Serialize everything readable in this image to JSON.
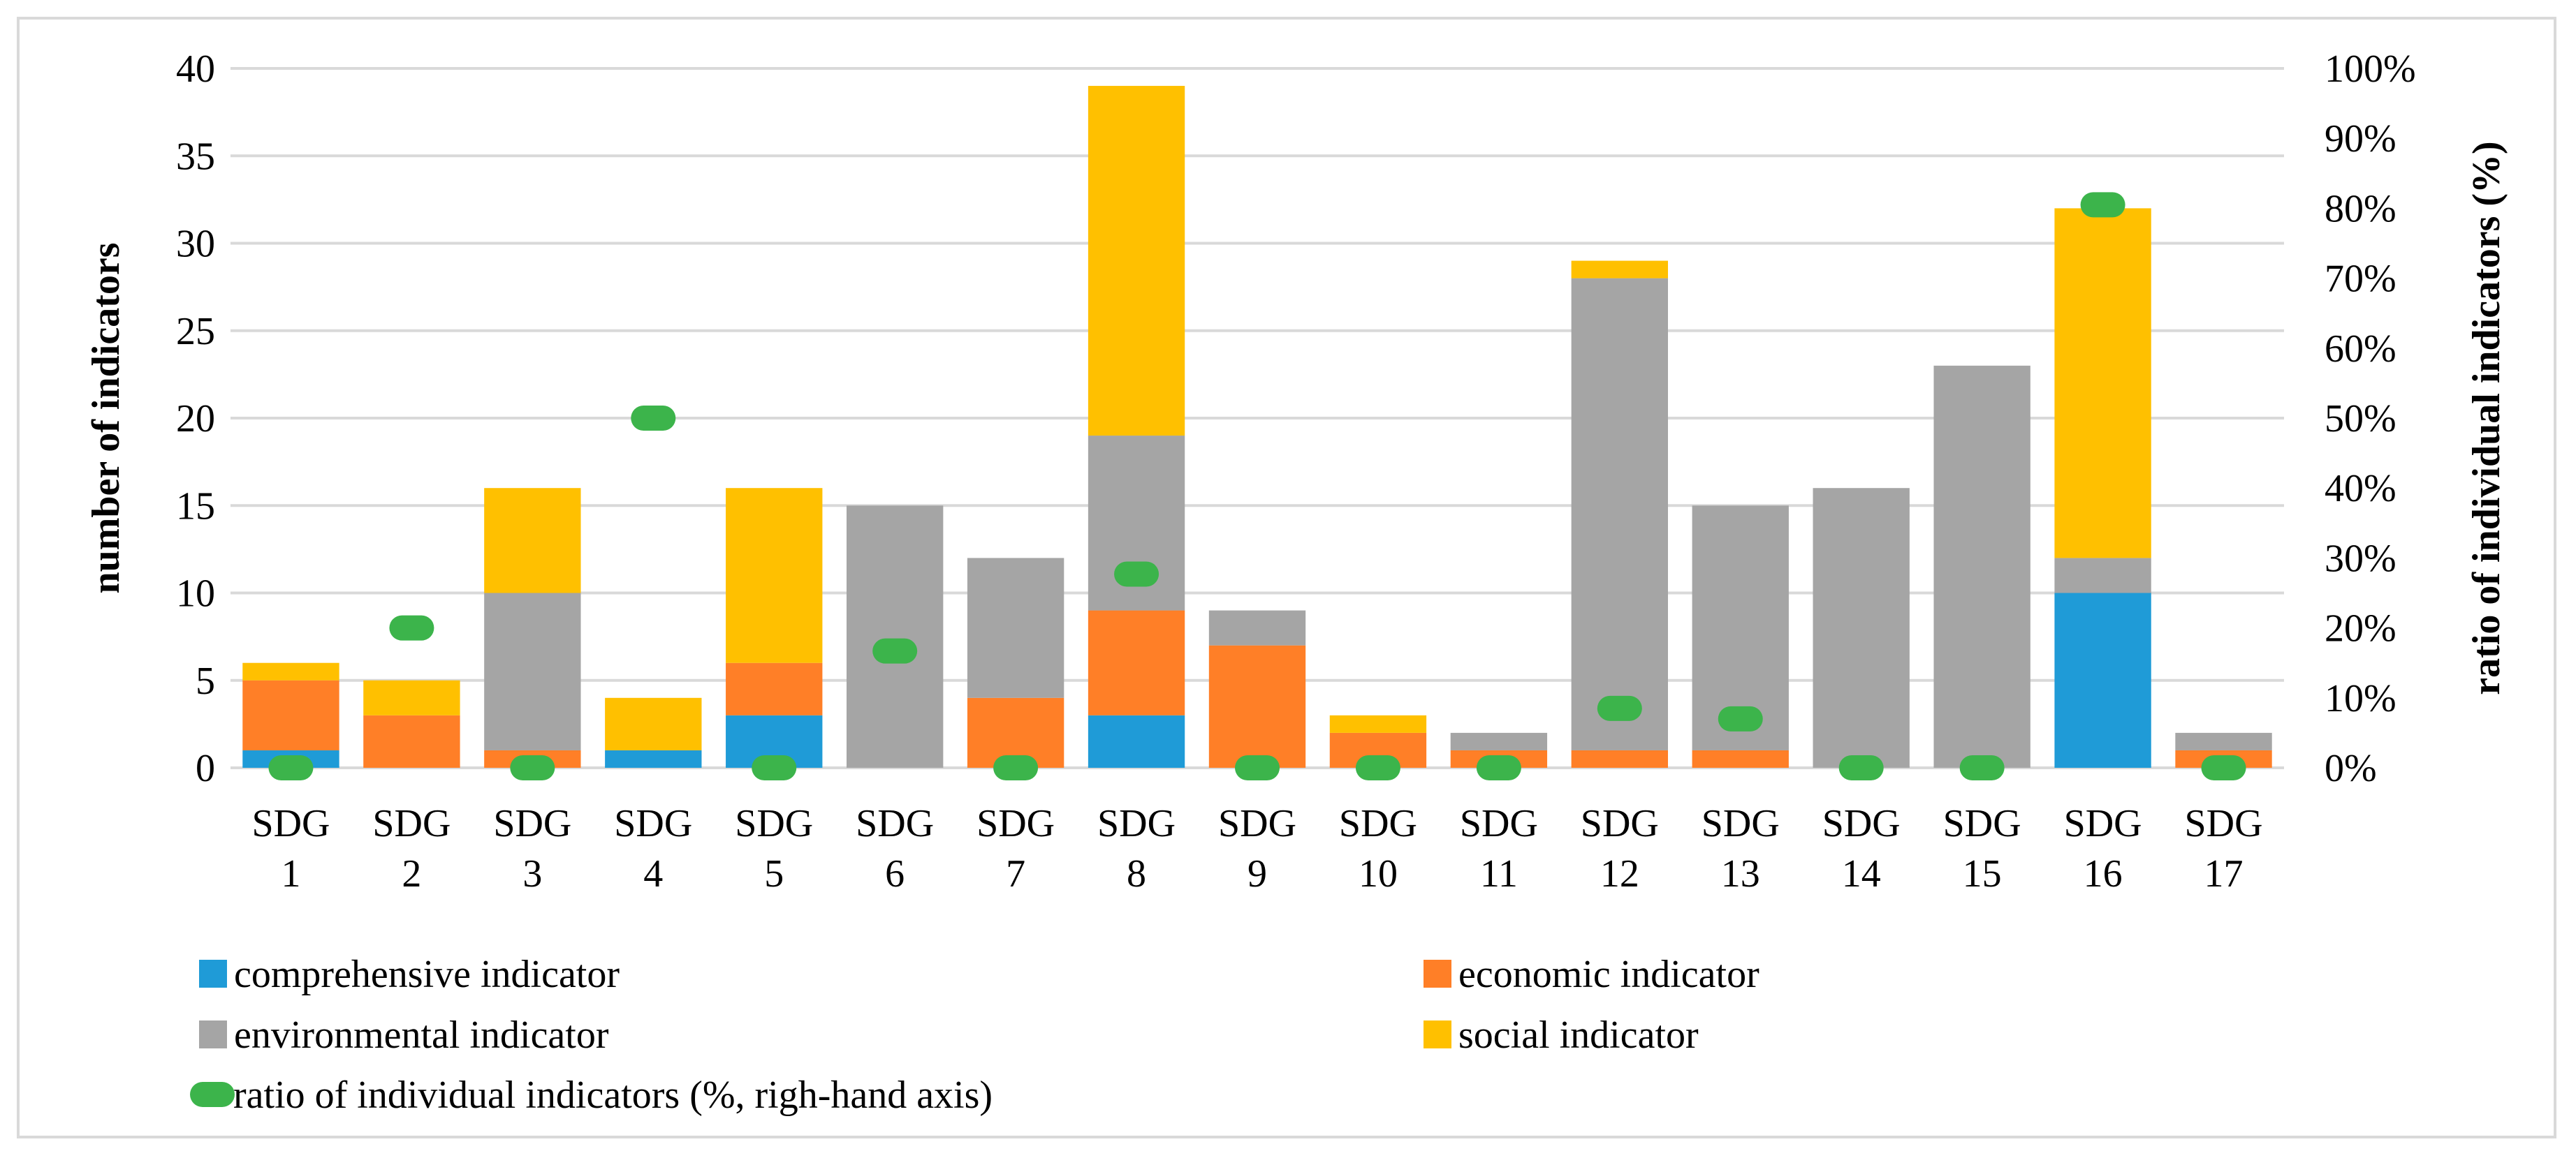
{
  "chart_data": {
    "type": "bar",
    "stacked": true,
    "categories": [
      [
        "SDG",
        "1"
      ],
      [
        "SDG",
        "2"
      ],
      [
        "SDG",
        "3"
      ],
      [
        "SDG",
        "4"
      ],
      [
        "SDG",
        "5"
      ],
      [
        "SDG",
        "6"
      ],
      [
        "SDG",
        "7"
      ],
      [
        "SDG",
        "8"
      ],
      [
        "SDG",
        "9"
      ],
      [
        "SDG",
        "10"
      ],
      [
        "SDG",
        "11"
      ],
      [
        "SDG",
        "12"
      ],
      [
        "SDG",
        "13"
      ],
      [
        "SDG",
        "14"
      ],
      [
        "SDG",
        "15"
      ],
      [
        "SDG",
        "16"
      ],
      [
        "SDG",
        "17"
      ]
    ],
    "series": [
      {
        "name": "comprehensive indicator",
        "color": "#1f9bd7",
        "values": [
          1,
          0,
          0,
          1,
          3,
          0,
          0,
          3,
          0,
          0,
          0,
          0,
          0,
          0,
          0,
          10,
          0
        ]
      },
      {
        "name": "economic indicator",
        "color": "#ff7f27",
        "values": [
          4,
          3,
          1,
          0,
          3,
          0,
          4,
          6,
          7,
          2,
          1,
          1,
          1,
          0,
          0,
          0,
          1
        ]
      },
      {
        "name": "environmental indicator",
        "color": "#a5a5a5",
        "values": [
          0,
          0,
          9,
          0,
          0,
          15,
          8,
          10,
          2,
          0,
          1,
          27,
          14,
          16,
          23,
          2,
          1
        ]
      },
      {
        "name": "social indicator",
        "color": "#ffc000",
        "values": [
          1,
          2,
          6,
          3,
          10,
          0,
          0,
          20,
          0,
          1,
          0,
          1,
          0,
          0,
          0,
          20,
          0
        ]
      }
    ],
    "line_series": {
      "name": "ratio of individual indicators (%, righ-hand axis)",
      "color": "#3cb44b",
      "axis": "right",
      "values": [
        0,
        20,
        0,
        50,
        0,
        16.7,
        0,
        27.7,
        0,
        0,
        0,
        8.5,
        7,
        0,
        0,
        80.5,
        0
      ]
    },
    "ylabel": "number of indicators",
    "y2label": "ratio of individual indicators (%)",
    "ylim": [
      0,
      40
    ],
    "yticks": [
      "0",
      "5",
      "10",
      "15",
      "20",
      "25",
      "30",
      "35",
      "40"
    ],
    "y2lim": [
      0,
      100
    ],
    "y2ticks": [
      "0%",
      "10%",
      "20%",
      "30%",
      "40%",
      "50%",
      "60%",
      "70%",
      "80%",
      "90%",
      "100%"
    ],
    "grid": true,
    "legend_position": "bottom"
  }
}
